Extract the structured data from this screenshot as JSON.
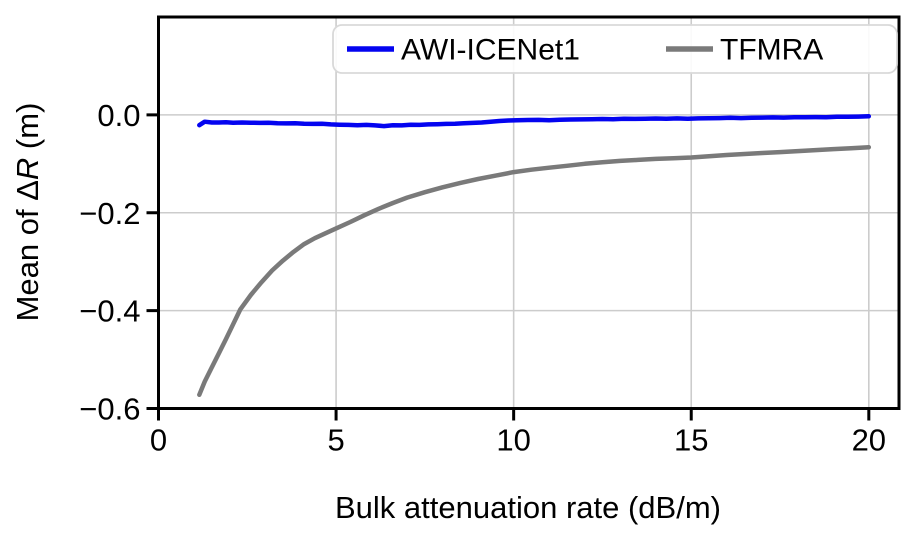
{
  "chart_data": {
    "type": "line",
    "title": "",
    "xlabel": "Bulk attenuation rate (dB/m)",
    "ylabel": "Mean of ΔR (m)",
    "ylabel_parts": [
      {
        "t": "Mean of Δ"
      },
      {
        "t": "R",
        "italic": true
      },
      {
        "t": " (m)"
      }
    ],
    "xlim": [
      0,
      20.85
    ],
    "ylim": [
      -0.6,
      0.2
    ],
    "xticks": [
      0,
      5,
      10,
      15,
      20
    ],
    "xtick_labels": [
      "0",
      "5",
      "10",
      "15",
      "20"
    ],
    "yticks": [
      0.0,
      -0.2,
      -0.4,
      -0.6
    ],
    "ytick_labels": [
      "0.0",
      "−0.2",
      "−0.4",
      "−0.6"
    ],
    "grid": true,
    "grid_color": "#cccccc",
    "legend_position": "upper right, horizontal",
    "series": [
      {
        "name": "AWI-ICENet1",
        "color": "#0404f0",
        "points": [
          [
            1.15,
            -0.021
          ],
          [
            1.3,
            -0.014
          ],
          [
            1.5,
            -0.0155
          ],
          [
            1.7,
            -0.0155
          ],
          [
            1.9,
            -0.015
          ],
          [
            2.1,
            -0.016
          ],
          [
            2.35,
            -0.0155
          ],
          [
            2.6,
            -0.016
          ],
          [
            2.85,
            -0.0165
          ],
          [
            3.1,
            -0.016
          ],
          [
            3.35,
            -0.017
          ],
          [
            3.6,
            -0.0175
          ],
          [
            3.85,
            -0.017
          ],
          [
            4.1,
            -0.018
          ],
          [
            4.35,
            -0.0185
          ],
          [
            4.6,
            -0.018
          ],
          [
            4.85,
            -0.0195
          ],
          [
            5.1,
            -0.02
          ],
          [
            5.35,
            -0.0205
          ],
          [
            5.6,
            -0.021
          ],
          [
            5.85,
            -0.0205
          ],
          [
            6.1,
            -0.0215
          ],
          [
            6.35,
            -0.023
          ],
          [
            6.6,
            -0.021
          ],
          [
            6.85,
            -0.0215
          ],
          [
            7.1,
            -0.02
          ],
          [
            7.35,
            -0.0205
          ],
          [
            7.6,
            -0.0195
          ],
          [
            7.85,
            -0.019
          ],
          [
            8.1,
            -0.0185
          ],
          [
            8.35,
            -0.018
          ],
          [
            8.6,
            -0.017
          ],
          [
            8.85,
            -0.0165
          ],
          [
            9.1,
            -0.0155
          ],
          [
            9.35,
            -0.014
          ],
          [
            9.6,
            -0.0125
          ],
          [
            9.85,
            -0.0115
          ],
          [
            10.1,
            -0.011
          ],
          [
            10.4,
            -0.0105
          ],
          [
            10.7,
            -0.0102
          ],
          [
            11.0,
            -0.0108
          ],
          [
            11.3,
            -0.01
          ],
          [
            11.6,
            -0.0095
          ],
          [
            11.9,
            -0.0092
          ],
          [
            12.2,
            -0.009
          ],
          [
            12.5,
            -0.0085
          ],
          [
            12.8,
            -0.0088
          ],
          [
            13.1,
            -0.008
          ],
          [
            13.4,
            -0.0082
          ],
          [
            13.7,
            -0.0078
          ],
          [
            14.0,
            -0.0075
          ],
          [
            14.3,
            -0.008
          ],
          [
            14.6,
            -0.0072
          ],
          [
            14.9,
            -0.0078
          ],
          [
            15.2,
            -0.0072
          ],
          [
            15.5,
            -0.007
          ],
          [
            15.8,
            -0.0065
          ],
          [
            16.1,
            -0.006
          ],
          [
            16.4,
            -0.0065
          ],
          [
            16.7,
            -0.0058
          ],
          [
            17.0,
            -0.0055
          ],
          [
            17.3,
            -0.0052
          ],
          [
            17.6,
            -0.0055
          ],
          [
            17.9,
            -0.005
          ],
          [
            18.2,
            -0.0048
          ],
          [
            18.5,
            -0.0045
          ],
          [
            18.8,
            -0.0048
          ],
          [
            19.1,
            -0.004
          ],
          [
            19.4,
            -0.0038
          ],
          [
            19.7,
            -0.0035
          ],
          [
            20.0,
            -0.003
          ]
        ]
      },
      {
        "name": "TFMRA",
        "color": "#7a7a7a",
        "points": [
          [
            1.15,
            -0.572
          ],
          [
            1.3,
            -0.545
          ],
          [
            1.5,
            -0.516
          ],
          [
            1.7,
            -0.487
          ],
          [
            1.9,
            -0.458
          ],
          [
            2.1,
            -0.428
          ],
          [
            2.3,
            -0.398
          ],
          [
            2.6,
            -0.368
          ],
          [
            2.9,
            -0.342
          ],
          [
            3.2,
            -0.318
          ],
          [
            3.5,
            -0.298
          ],
          [
            3.8,
            -0.28
          ],
          [
            4.1,
            -0.264
          ],
          [
            4.4,
            -0.252
          ],
          [
            4.7,
            -0.242
          ],
          [
            5.0,
            -0.232
          ],
          [
            5.4,
            -0.219
          ],
          [
            5.8,
            -0.205
          ],
          [
            6.2,
            -0.192
          ],
          [
            6.6,
            -0.18
          ],
          [
            7.0,
            -0.169
          ],
          [
            7.5,
            -0.158
          ],
          [
            8.0,
            -0.148
          ],
          [
            8.5,
            -0.139
          ],
          [
            9.0,
            -0.131
          ],
          [
            9.5,
            -0.124
          ],
          [
            10.0,
            -0.117
          ],
          [
            10.5,
            -0.112
          ],
          [
            11.0,
            -0.108
          ],
          [
            11.5,
            -0.104
          ],
          [
            12.0,
            -0.1
          ],
          [
            12.5,
            -0.097
          ],
          [
            13.0,
            -0.094
          ],
          [
            13.5,
            -0.092
          ],
          [
            14.0,
            -0.09
          ],
          [
            14.5,
            -0.0885
          ],
          [
            15.0,
            -0.087
          ],
          [
            15.5,
            -0.0845
          ],
          [
            16.0,
            -0.082
          ],
          [
            16.5,
            -0.08
          ],
          [
            17.0,
            -0.078
          ],
          [
            17.5,
            -0.076
          ],
          [
            18.0,
            -0.074
          ],
          [
            18.5,
            -0.072
          ],
          [
            19.0,
            -0.07
          ],
          [
            19.5,
            -0.068
          ],
          [
            20.0,
            -0.066
          ]
        ]
      }
    ]
  }
}
